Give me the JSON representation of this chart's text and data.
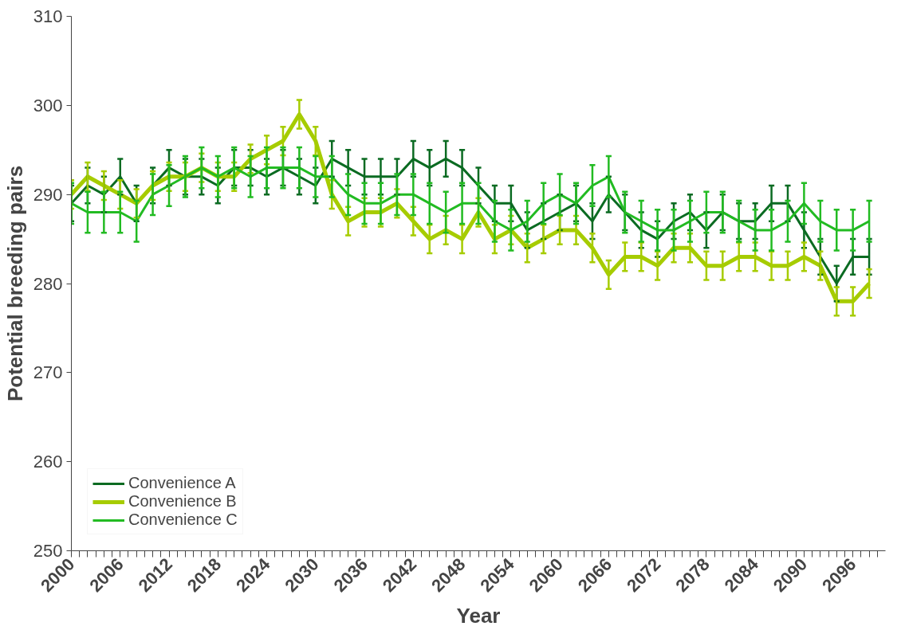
{
  "chart_data": {
    "type": "line",
    "xlabel": "Year",
    "ylabel": "Potential breeding pairs",
    "x": [
      2000,
      2002,
      2004,
      2006,
      2008,
      2010,
      2012,
      2014,
      2016,
      2018,
      2020,
      2022,
      2024,
      2026,
      2028,
      2030,
      2032,
      2034,
      2036,
      2038,
      2040,
      2042,
      2044,
      2046,
      2048,
      2050,
      2052,
      2054,
      2056,
      2058,
      2060,
      2062,
      2064,
      2066,
      2068,
      2070,
      2072,
      2074,
      2076,
      2078,
      2080,
      2082,
      2084,
      2086,
      2088,
      2090,
      2092,
      2094,
      2096,
      2098
    ],
    "series": [
      {
        "name": "Convenience A",
        "color": "#0b6b22",
        "values": [
          289,
          291,
          290,
          292,
          289,
          291,
          293,
          292,
          292,
          291,
          293,
          293,
          292,
          293,
          292,
          291,
          294,
          293,
          292,
          292,
          292,
          294,
          293,
          294,
          293,
          291,
          289,
          289,
          286,
          287,
          288,
          289,
          287,
          290,
          288,
          286,
          285,
          287,
          288,
          286,
          288,
          287,
          287,
          289,
          289,
          286,
          283,
          280,
          283,
          283
        ],
        "errors": [
          2,
          2,
          2,
          2,
          2,
          2,
          2,
          2,
          2,
          2,
          2,
          2,
          2,
          2,
          2,
          2,
          2,
          2,
          2,
          2,
          2,
          2,
          2,
          2,
          2,
          2,
          2,
          2,
          2,
          2,
          2,
          2,
          2,
          2,
          2,
          2,
          2,
          2,
          2,
          2,
          2,
          2,
          2,
          2,
          2,
          2,
          2,
          2,
          2,
          2
        ]
      },
      {
        "name": "Convenience B",
        "color": "#a6cc00",
        "values": [
          290,
          292,
          291,
          290,
          289,
          291,
          292,
          292,
          293,
          292,
          292,
          294,
          295,
          296,
          299,
          296,
          290,
          287,
          288,
          288,
          289,
          287,
          285,
          286,
          285,
          288,
          285,
          286,
          284,
          285,
          286,
          286,
          284,
          281,
          283,
          283,
          282,
          284,
          284,
          282,
          282,
          283,
          283,
          282,
          282,
          283,
          282,
          278,
          278,
          280
        ],
        "errors": [
          1.6,
          1.6,
          1.6,
          1.6,
          1.6,
          1.6,
          1.6,
          1.6,
          1.6,
          1.6,
          1.6,
          1.6,
          1.6,
          1.6,
          1.6,
          1.6,
          1.6,
          1.6,
          1.6,
          1.6,
          1.6,
          1.6,
          1.6,
          1.6,
          1.6,
          1.6,
          1.6,
          1.6,
          1.6,
          1.6,
          1.6,
          1.6,
          1.6,
          1.6,
          1.6,
          1.6,
          1.6,
          1.6,
          1.6,
          1.6,
          1.6,
          1.6,
          1.6,
          1.6,
          1.6,
          1.6,
          1.6,
          1.6,
          1.6,
          1.6
        ]
      },
      {
        "name": "Convenience C",
        "color": "#22bb22",
        "values": [
          289,
          288,
          288,
          288,
          287,
          290,
          291,
          292,
          293,
          292,
          293,
          292,
          293,
          293,
          293,
          292,
          292,
          290,
          289,
          289,
          290,
          290,
          289,
          288,
          289,
          289,
          287,
          286,
          287,
          289,
          290,
          289,
          291,
          292,
          288,
          287,
          286,
          286,
          287,
          288,
          288,
          287,
          286,
          286,
          287,
          289,
          287,
          286,
          286,
          287
        ],
        "errors": [
          2.3,
          2.3,
          2.3,
          2.3,
          2.3,
          2.3,
          2.3,
          2.3,
          2.3,
          2.3,
          2.3,
          2.3,
          2.3,
          2.3,
          2.3,
          2.3,
          2.3,
          2.3,
          2.3,
          2.3,
          2.3,
          2.3,
          2.3,
          2.3,
          2.3,
          2.3,
          2.3,
          2.3,
          2.3,
          2.3,
          2.3,
          2.3,
          2.3,
          2.3,
          2.3,
          2.3,
          2.3,
          2.3,
          2.3,
          2.3,
          2.3,
          2.3,
          2.3,
          2.3,
          2.3,
          2.3,
          2.3,
          2.3,
          2.3,
          2.3
        ]
      }
    ],
    "xlim": [
      2000,
      2100
    ],
    "ylim": [
      250,
      310
    ],
    "yticks": [
      250,
      260,
      270,
      280,
      290,
      300,
      310
    ],
    "xticks": [
      2000,
      {
        "value": 2001,
        "label": null
      },
      {
        "value": 2002,
        "label": null
      },
      {
        "value": 2003,
        "label": null
      },
      {
        "value": 2004,
        "label": null
      },
      {
        "value": 2005,
        "label": null
      },
      2006,
      {
        "value": 2007,
        "label": null
      },
      {
        "value": 2008,
        "label": null
      },
      {
        "value": 2009,
        "label": null
      },
      {
        "value": 2010,
        "label": null
      },
      {
        "value": 2011,
        "label": null
      },
      2012,
      {
        "value": 2013,
        "label": null
      },
      {
        "value": 2014,
        "label": null
      },
      {
        "value": 2015,
        "label": null
      },
      {
        "value": 2016,
        "label": null
      },
      {
        "value": 2017,
        "label": null
      },
      2018,
      {
        "value": 2019,
        "label": null
      },
      {
        "value": 2020,
        "label": null
      },
      {
        "value": 2021,
        "label": null
      },
      {
        "value": 2022,
        "label": null
      },
      {
        "value": 2023,
        "label": null
      },
      2024,
      {
        "value": 2025,
        "label": null
      },
      {
        "value": 2026,
        "label": null
      },
      {
        "value": 2027,
        "label": null
      },
      {
        "value": 2028,
        "label": null
      },
      {
        "value": 2029,
        "label": null
      },
      2030,
      {
        "value": 2031,
        "label": null
      },
      {
        "value": 2032,
        "label": null
      },
      {
        "value": 2033,
        "label": null
      },
      {
        "value": 2034,
        "label": null
      },
      {
        "value": 2035,
        "label": null
      },
      2036,
      {
        "value": 2037,
        "label": null
      },
      {
        "value": 2038,
        "label": null
      },
      {
        "value": 2039,
        "label": null
      },
      {
        "value": 2040,
        "label": null
      },
      {
        "value": 2041,
        "label": null
      },
      2042,
      {
        "value": 2043,
        "label": null
      },
      {
        "value": 2044,
        "label": null
      },
      {
        "value": 2045,
        "label": null
      },
      {
        "value": 2046,
        "label": null
      },
      {
        "value": 2047,
        "label": null
      },
      2048,
      {
        "value": 2049,
        "label": null
      },
      {
        "value": 2050,
        "label": null
      },
      {
        "value": 2051,
        "label": null
      },
      {
        "value": 2052,
        "label": null
      },
      {
        "value": 2053,
        "label": null
      },
      2054,
      {
        "value": 2055,
        "label": null
      },
      {
        "value": 2056,
        "label": null
      },
      {
        "value": 2057,
        "label": null
      },
      {
        "value": 2058,
        "label": null
      },
      {
        "value": 2059,
        "label": null
      },
      2060,
      {
        "value": 2061,
        "label": null
      },
      {
        "value": 2062,
        "label": null
      },
      {
        "value": 2063,
        "label": null
      },
      {
        "value": 2064,
        "label": null
      },
      {
        "value": 2065,
        "label": null
      },
      2066,
      {
        "value": 2067,
        "label": null
      },
      {
        "value": 2068,
        "label": null
      },
      {
        "value": 2069,
        "label": null
      },
      {
        "value": 2070,
        "label": null
      },
      {
        "value": 2071,
        "label": null
      },
      2072,
      {
        "value": 2073,
        "label": null
      },
      {
        "value": 2074,
        "label": null
      },
      {
        "value": 2075,
        "label": null
      },
      {
        "value": 2076,
        "label": null
      },
      {
        "value": 2077,
        "label": null
      },
      2078,
      {
        "value": 2079,
        "label": null
      },
      {
        "value": 2080,
        "label": null
      },
      {
        "value": 2081,
        "label": null
      },
      {
        "value": 2082,
        "label": null
      },
      {
        "value": 2083,
        "label": null
      },
      2084,
      {
        "value": 2085,
        "label": null
      },
      {
        "value": 2086,
        "label": null
      },
      {
        "value": 2087,
        "label": null
      },
      {
        "value": 2088,
        "label": null
      },
      {
        "value": 2089,
        "label": null
      },
      2090,
      {
        "value": 2091,
        "label": null
      },
      {
        "value": 2092,
        "label": null
      },
      {
        "value": 2093,
        "label": null
      },
      {
        "value": 2094,
        "label": null
      },
      {
        "value": 2095,
        "label": null
      },
      2096,
      {
        "value": 2097,
        "label": null
      },
      {
        "value": 2098,
        "label": null
      },
      {
        "value": 2099,
        "label": null
      }
    ],
    "legend": "bottom left",
    "grid": false,
    "marker": "none",
    "line_style": "solid"
  }
}
